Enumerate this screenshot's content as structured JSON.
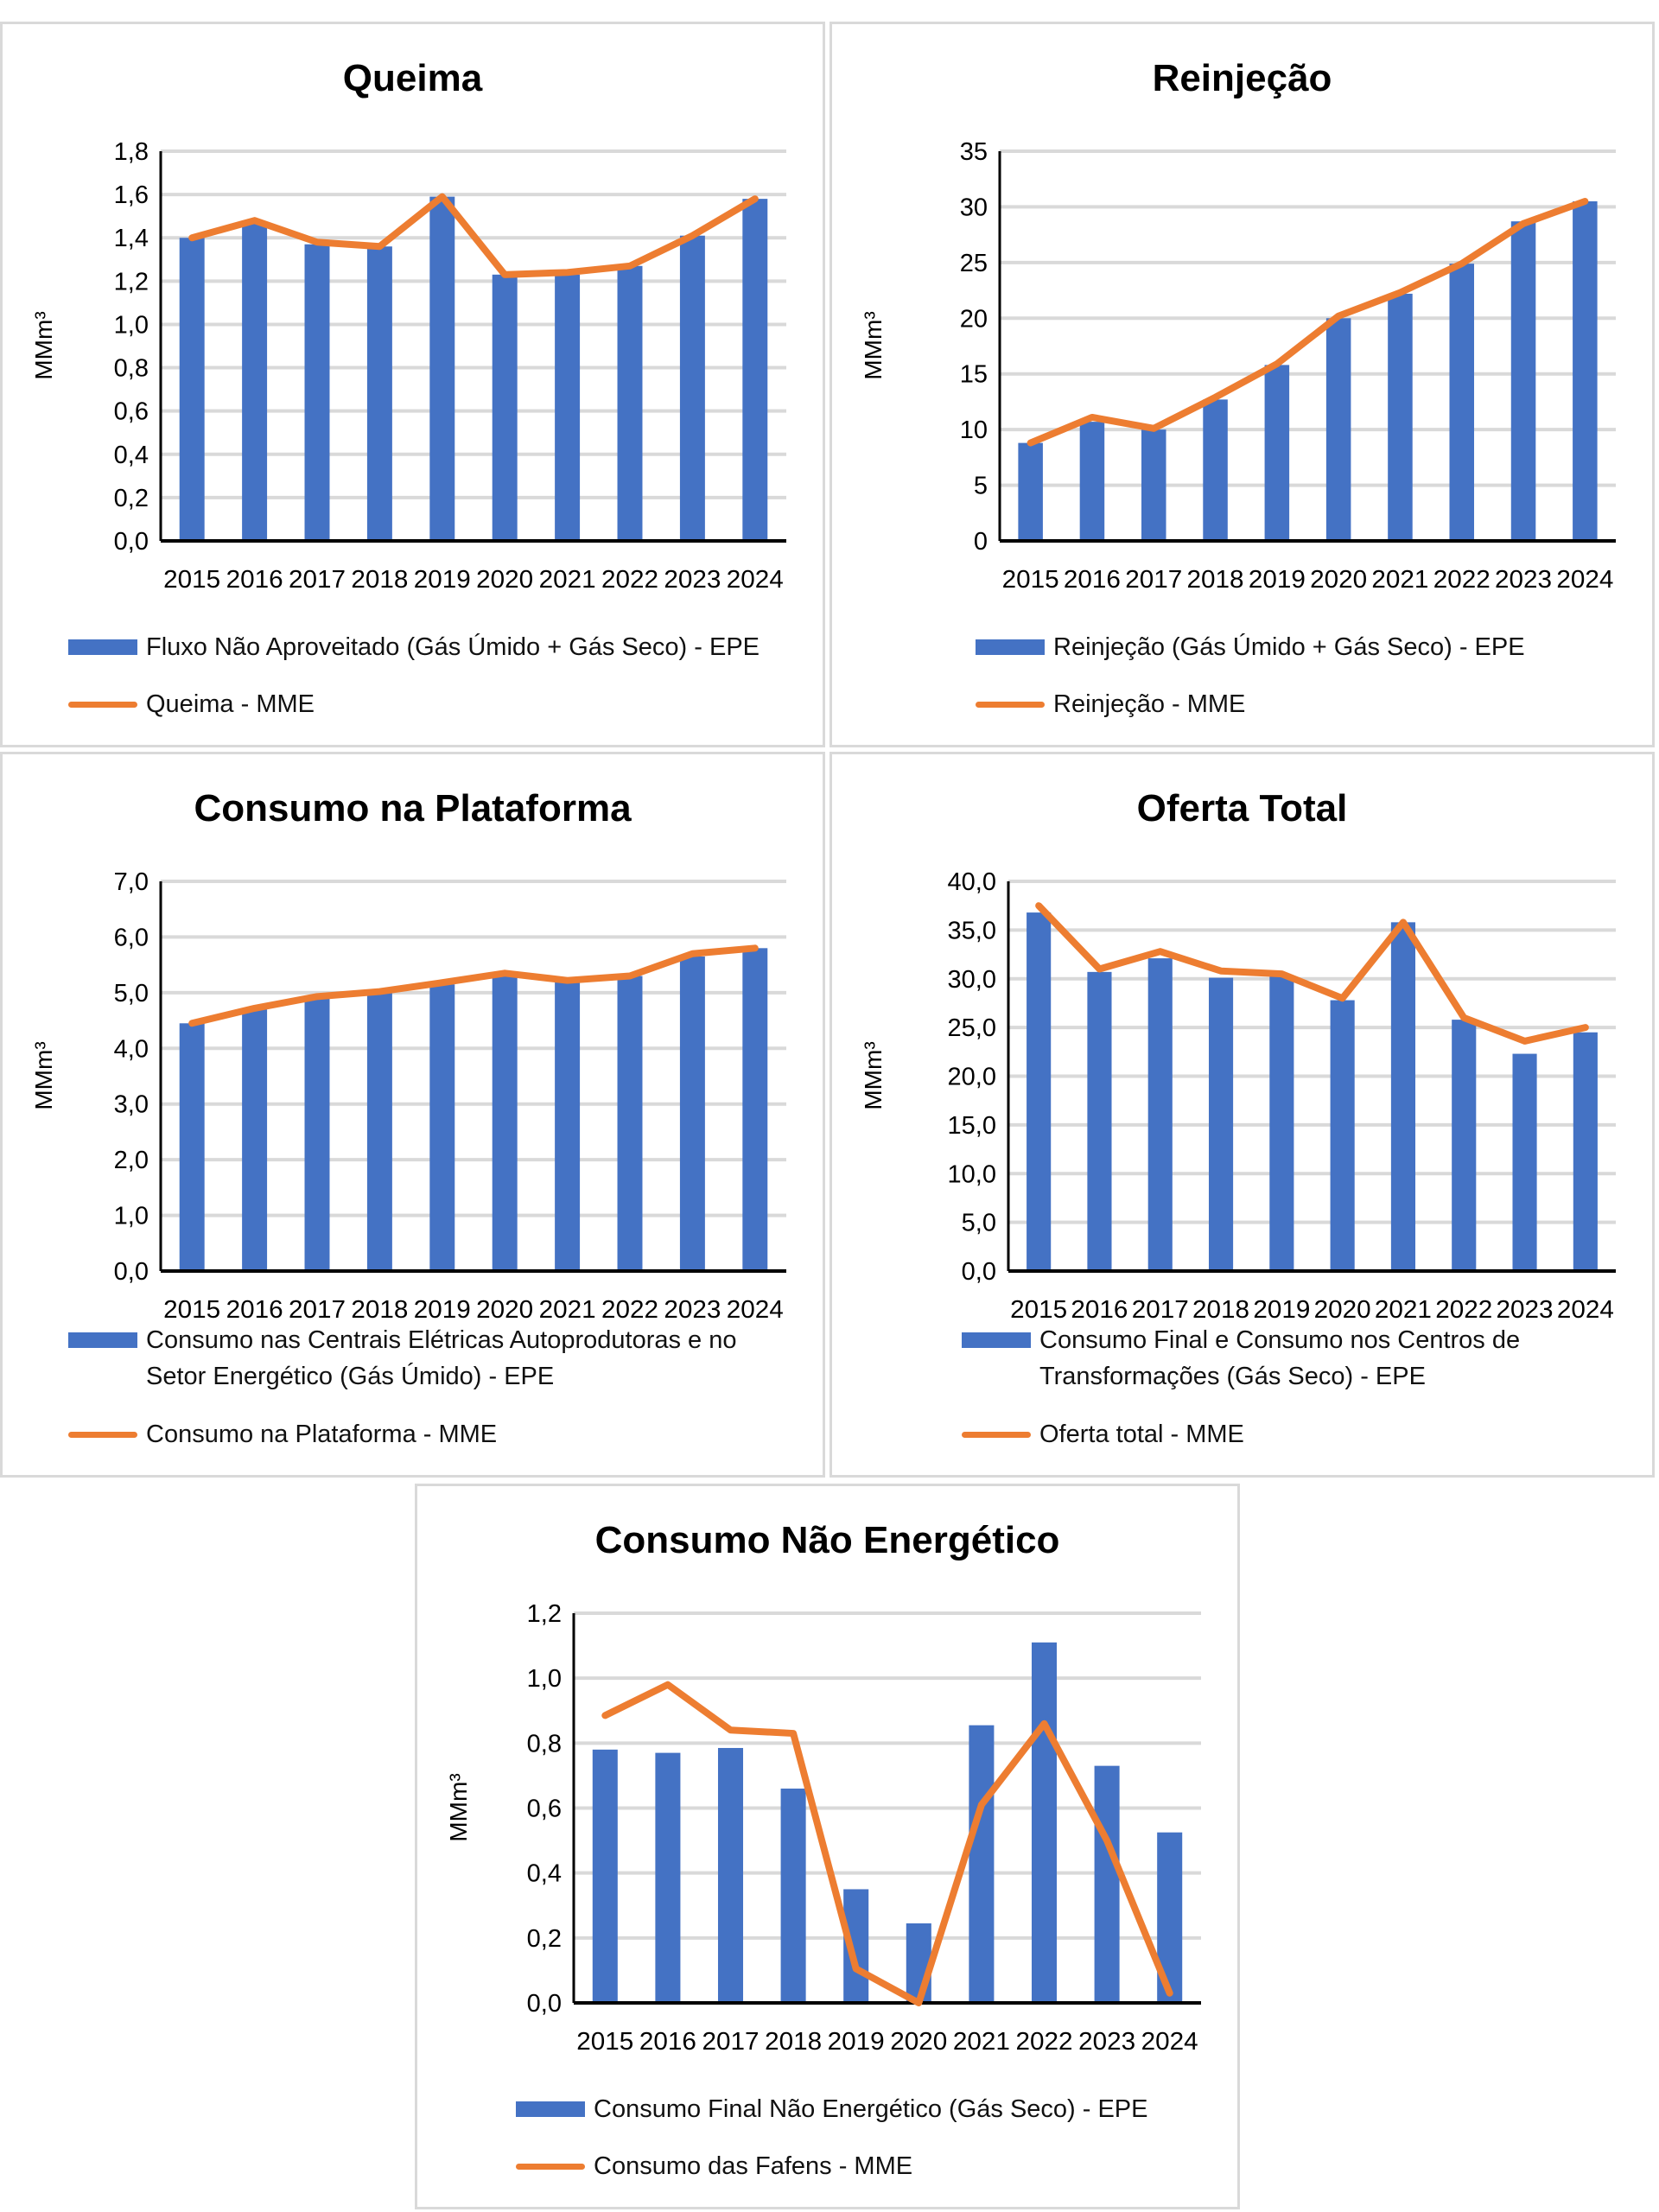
{
  "colors": {
    "bar": "#4472c4",
    "line": "#ed7d31",
    "grid": "#d9d9d9"
  },
  "chart_data": [
    {
      "type": "bar+line",
      "title": "Queima",
      "ylabel": "MMm³",
      "ylim": [
        0,
        1.8
      ],
      "yticks": [
        "0,0",
        "0,2",
        "0,4",
        "0,6",
        "0,8",
        "1,0",
        "1,2",
        "1,4",
        "1,6",
        "1,8"
      ],
      "categories": [
        "2015",
        "2016",
        "2017",
        "2018",
        "2019",
        "2020",
        "2021",
        "2022",
        "2023",
        "2024"
      ],
      "series": [
        {
          "name": "Fluxo Não Aproveitado (Gás Úmido + Gás Seco) - EPE",
          "kind": "bar",
          "values": [
            1.4,
            1.47,
            1.37,
            1.36,
            1.59,
            1.23,
            1.23,
            1.27,
            1.41,
            1.58
          ]
        },
        {
          "name": "Queima - MME",
          "kind": "line",
          "values": [
            1.4,
            1.48,
            1.38,
            1.36,
            1.59,
            1.23,
            1.24,
            1.27,
            1.41,
            1.58
          ]
        }
      ],
      "legend": [
        "Fluxo Não Aproveitado (Gás Úmido + Gás Seco) - EPE",
        "Queima - MME"
      ]
    },
    {
      "type": "bar+line",
      "title": "Reinjeção",
      "ylabel": "MMm³",
      "ylim": [
        0,
        35
      ],
      "yticks": [
        "0",
        "5",
        "10",
        "15",
        "20",
        "25",
        "30",
        "35"
      ],
      "categories": [
        "2015",
        "2016",
        "2017",
        "2018",
        "2019",
        "2020",
        "2021",
        "2022",
        "2023",
        "2024"
      ],
      "series": [
        {
          "name": "Reinjeção (Gás Úmido + Gás Seco) - EPE",
          "kind": "bar",
          "values": [
            8.8,
            10.7,
            10.0,
            12.7,
            15.8,
            20.0,
            22.2,
            24.9,
            28.7,
            30.5
          ]
        },
        {
          "name": "Reinjeção - MME",
          "kind": "line",
          "values": [
            8.8,
            11.1,
            10.1,
            12.9,
            15.9,
            20.2,
            22.3,
            24.9,
            28.5,
            30.5
          ]
        }
      ],
      "legend": [
        "Reinjeção (Gás Úmido + Gás Seco) - EPE",
        "Reinjeção - MME"
      ]
    },
    {
      "type": "bar+line",
      "title": "Consumo na Plataforma",
      "ylabel": "MMm³",
      "ylim": [
        0,
        7
      ],
      "yticks": [
        "0,0",
        "1,0",
        "2,0",
        "3,0",
        "4,0",
        "5,0",
        "6,0",
        "7,0"
      ],
      "categories": [
        "2015",
        "2016",
        "2017",
        "2018",
        "2019",
        "2020",
        "2021",
        "2022",
        "2023",
        "2024"
      ],
      "series": [
        {
          "name": "Consumo nas Centrais Elétricas Autoprodutoras e no Setor Energético (Gás Úmido) - EPE",
          "kind": "bar",
          "values": [
            4.45,
            4.7,
            4.9,
            5.0,
            5.15,
            5.3,
            5.2,
            5.3,
            5.65,
            5.8
          ]
        },
        {
          "name": "Consumo na Plataforma - MME",
          "kind": "line",
          "values": [
            4.45,
            4.72,
            4.93,
            5.02,
            5.18,
            5.35,
            5.22,
            5.3,
            5.7,
            5.8
          ]
        }
      ],
      "legend": [
        "Consumo nas Centrais Elétricas Autoprodutoras e no Setor Energético (Gás Úmido) - EPE",
        "Consumo na Plataforma - MME"
      ]
    },
    {
      "type": "bar+line",
      "title": "Oferta Total",
      "ylabel": "MMm³",
      "ylim": [
        0,
        40
      ],
      "yticks": [
        "0,0",
        "5,0",
        "10,0",
        "15,0",
        "20,0",
        "25,0",
        "30,0",
        "35,0",
        "40,0"
      ],
      "categories": [
        "2015",
        "2016",
        "2017",
        "2018",
        "2019",
        "2020",
        "2021",
        "2022",
        "2023",
        "2024"
      ],
      "series": [
        {
          "name": "Consumo Final e Consumo nos Centros de Transformações (Gás Seco) - EPE",
          "kind": "bar",
          "values": [
            36.8,
            30.7,
            32.1,
            30.1,
            30.2,
            27.8,
            35.8,
            25.8,
            22.3,
            24.5
          ]
        },
        {
          "name": "Oferta total - MME",
          "kind": "line",
          "values": [
            37.5,
            31.0,
            32.8,
            30.8,
            30.5,
            28.0,
            35.8,
            26.0,
            23.6,
            25.0
          ]
        }
      ],
      "legend": [
        "Consumo Final e Consumo nos Centros de Transformações (Gás Seco) - EPE",
        "Oferta total - MME"
      ]
    },
    {
      "type": "bar+line",
      "title": "Consumo Não Energético",
      "ylabel": "MMm³",
      "ylim": [
        0,
        1.2
      ],
      "yticks": [
        "0,0",
        "0,2",
        "0,4",
        "0,6",
        "0,8",
        "1,0",
        "1,2"
      ],
      "categories": [
        "2015",
        "2016",
        "2017",
        "2018",
        "2019",
        "2020",
        "2021",
        "2022",
        "2023",
        "2024"
      ],
      "series": [
        {
          "name": "Consumo Final Não Energético (Gás Seco) - EPE",
          "kind": "bar",
          "values": [
            0.78,
            0.77,
            0.785,
            0.66,
            0.35,
            0.245,
            0.855,
            1.11,
            0.73,
            0.525
          ]
        },
        {
          "name": "Consumo das Fafens - MME",
          "kind": "line",
          "values": [
            0.885,
            0.98,
            0.84,
            0.83,
            0.105,
            0.0,
            0.61,
            0.86,
            0.5,
            0.03
          ]
        }
      ],
      "legend": [
        "Consumo Final Não Energético (Gás Seco) - EPE",
        "Consumo das Fafens - MME"
      ]
    }
  ]
}
